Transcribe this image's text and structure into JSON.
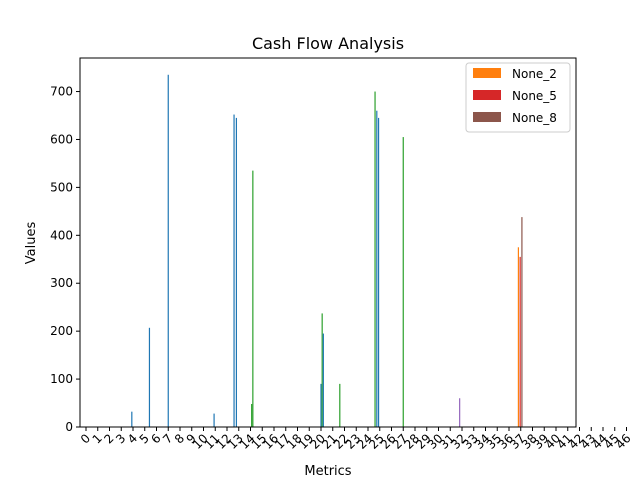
{
  "chart_data": {
    "type": "bar",
    "title": "Cash Flow Analysis",
    "xlabel": "Metrics",
    "ylabel": "Values",
    "ylim": [
      0,
      770
    ],
    "yticks": [
      0,
      100,
      200,
      300,
      400,
      500,
      600,
      700
    ],
    "categories": [
      "0",
      "1",
      "2",
      "3",
      "4",
      "5",
      "6",
      "7",
      "8",
      "9",
      "10",
      "11",
      "12",
      "13",
      "14",
      "15",
      "16",
      "17",
      "18",
      "19",
      "20",
      "21",
      "22",
      "23",
      "24",
      "25",
      "26",
      "27",
      "28",
      "29",
      "30",
      "31",
      "32",
      "33",
      "34",
      "35",
      "36",
      "37",
      "38",
      "39",
      "40",
      "41",
      "42",
      "43",
      "44",
      "45",
      "46"
    ],
    "legend_position": "top-right",
    "legend": [
      {
        "name": "None_2",
        "color": "#ff7f0e"
      },
      {
        "name": "None_5",
        "color": "#d62728"
      },
      {
        "name": "None_8",
        "color": "#8c564b"
      }
    ],
    "bars": [
      {
        "x": 3.9,
        "value": 32,
        "color": "#1f77b4"
      },
      {
        "x": 5.4,
        "value": 207,
        "color": "#1f77b4"
      },
      {
        "x": 7.0,
        "value": 735,
        "color": "#1f77b4"
      },
      {
        "x": 10.9,
        "value": 28,
        "color": "#1f77b4"
      },
      {
        "x": 12.6,
        "value": 652,
        "color": "#1f77b4"
      },
      {
        "x": 12.8,
        "value": 645,
        "color": "#1f77b4"
      },
      {
        "x": 14.1,
        "value": 48,
        "color": "#2ca02c"
      },
      {
        "x": 14.2,
        "value": 535,
        "color": "#2ca02c"
      },
      {
        "x": 20.0,
        "value": 90,
        "color": "#1f77b4"
      },
      {
        "x": 20.1,
        "value": 237,
        "color": "#2ca02c"
      },
      {
        "x": 20.2,
        "value": 195,
        "color": "#1f77b4"
      },
      {
        "x": 21.6,
        "value": 90,
        "color": "#2ca02c"
      },
      {
        "x": 24.6,
        "value": 700,
        "color": "#2ca02c"
      },
      {
        "x": 24.75,
        "value": 660,
        "color": "#1f77b4"
      },
      {
        "x": 24.9,
        "value": 645,
        "color": "#1f77b4"
      },
      {
        "x": 27.0,
        "value": 605,
        "color": "#2ca02c"
      },
      {
        "x": 31.8,
        "value": 60,
        "color": "#9467bd"
      },
      {
        "x": 36.8,
        "value": 375,
        "color": "#ff7f0e"
      },
      {
        "x": 36.95,
        "value": 355,
        "color": "#d62728"
      },
      {
        "x": 37.1,
        "value": 438,
        "color": "#8c564b"
      }
    ]
  }
}
